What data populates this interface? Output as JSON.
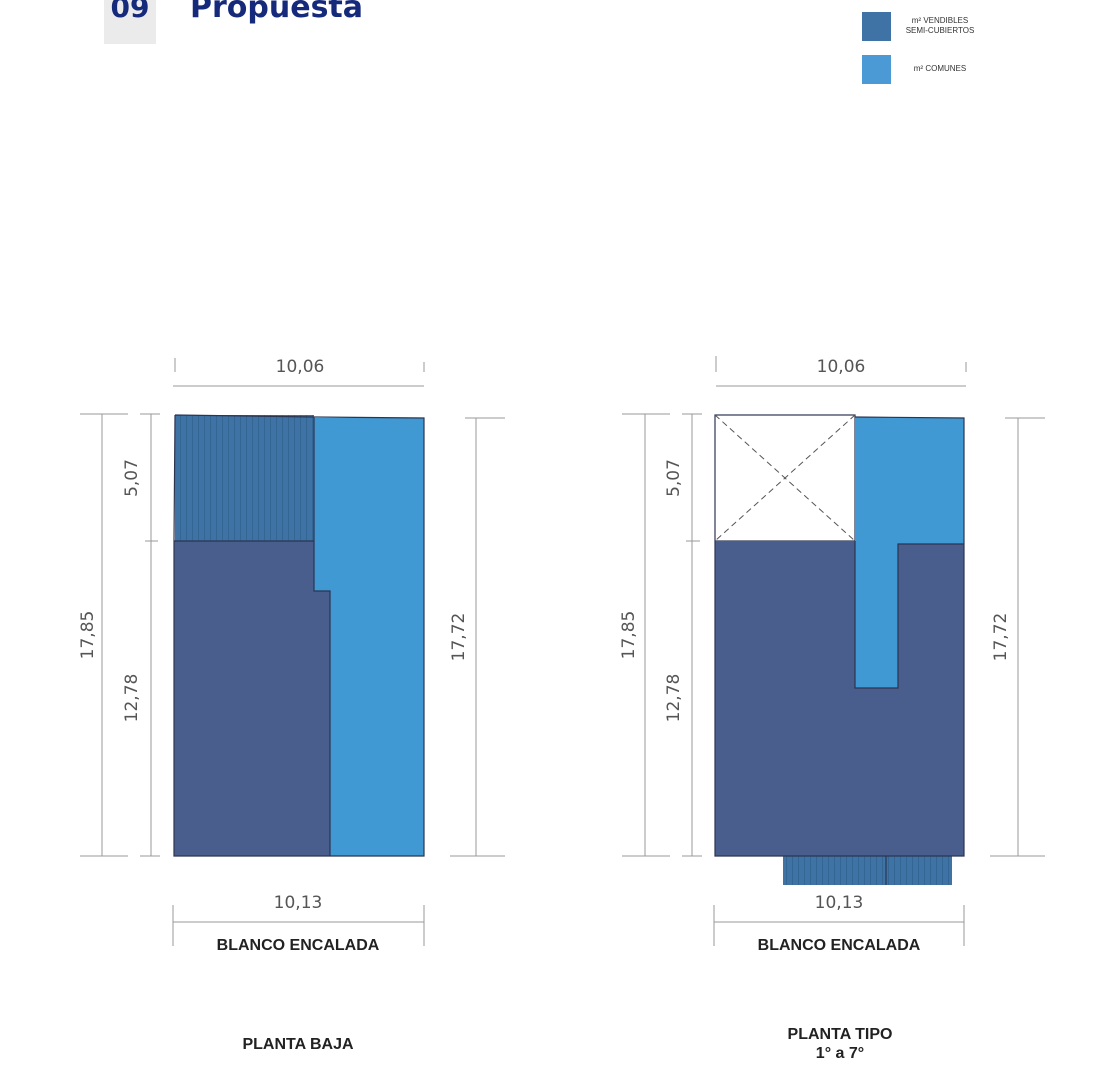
{
  "header": {
    "number": "09",
    "title": "Propuesta"
  },
  "legend": [
    {
      "label": "m² VENDIBLES\nSEMI-CUBIERTOS",
      "color": "#3f73a6"
    },
    {
      "label": "m² COMUNES",
      "color": "#4b9ad6"
    }
  ],
  "colors": {
    "vendibles_cubiertos": "#4a5e8e",
    "semi_cubiertos": "#3f73a6",
    "comunes": "#4199d4"
  },
  "plans": [
    {
      "caption_line1": "PLANTA BAJA",
      "caption_line2": "",
      "street": "BLANCO ENCALADA",
      "dims": {
        "top": "10,06",
        "bottom": "10,13",
        "left_total": "17,85",
        "left_upper": "5,07",
        "left_lower": "12,78",
        "right": "17,72"
      }
    },
    {
      "caption_line1": "PLANTA TIPO",
      "caption_line2": "1° a 7°",
      "street": "BLANCO ENCALADA",
      "dims": {
        "top": "10,06",
        "bottom": "10,13",
        "left_total": "17,85",
        "left_upper": "5,07",
        "left_lower": "12,78",
        "right": "17,72"
      }
    }
  ]
}
